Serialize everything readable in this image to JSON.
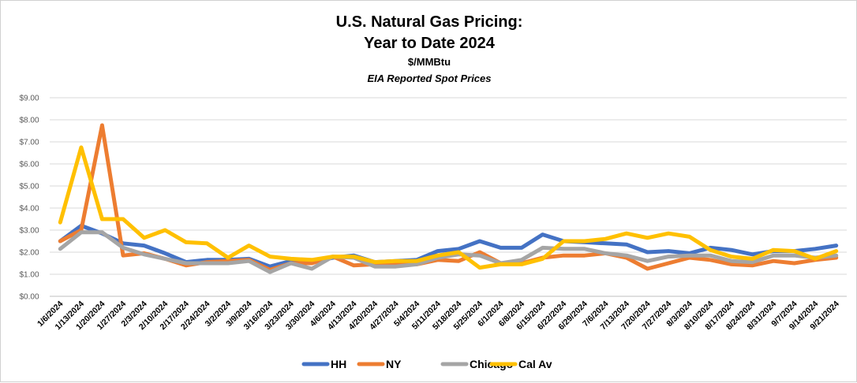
{
  "chart_data": {
    "type": "line",
    "title": "U.S. Natural Gas Pricing:",
    "subtitle": "Year to Date 2024",
    "unit_label": "$/MMBtu",
    "source_note": "EIA Reported Spot Prices",
    "xlabel": "",
    "ylabel": "",
    "ylim": [
      0,
      9
    ],
    "y_ticks": [
      "$0.00",
      "$1.00",
      "$2.00",
      "$3.00",
      "$4.00",
      "$5.00",
      "$6.00",
      "$7.00",
      "$8.00",
      "$9.00"
    ],
    "grid": true,
    "legend_position": "bottom",
    "categories": [
      "1/6/2024",
      "1/13/2024",
      "1/20/2024",
      "1/27/2024",
      "2/3/2024",
      "2/10/2024",
      "2/17/2024",
      "2/24/2024",
      "3/2/2024",
      "3/9/2024",
      "3/16/2024",
      "3/23/2024",
      "3/30/2024",
      "4/6/2024",
      "4/13/2024",
      "4/20/2024",
      "4/27/2024",
      "5/4/2024",
      "5/11/2024",
      "5/18/2024",
      "5/25/2024",
      "6/1/2024",
      "6/8/2024",
      "6/15/2024",
      "6/22/2024",
      "6/29/2024",
      "7/6/2024",
      "7/13/2024",
      "7/20/2024",
      "7/27/2024",
      "8/3/2024",
      "8/10/2024",
      "8/17/2024",
      "8/24/2024",
      "8/31/2024",
      "9/7/2024",
      "9/14/2024",
      "9/21/2024"
    ],
    "series": [
      {
        "name": "HH",
        "color": "#4472C4",
        "values": [
          2.5,
          3.2,
          2.85,
          2.4,
          2.3,
          1.95,
          1.55,
          1.65,
          1.65,
          1.7,
          1.35,
          1.6,
          1.55,
          1.75,
          1.85,
          1.55,
          1.6,
          1.65,
          2.05,
          2.15,
          2.5,
          2.2,
          2.2,
          2.8,
          2.5,
          2.45,
          2.4,
          2.35,
          2.0,
          2.05,
          1.95,
          2.2,
          2.1,
          1.9,
          2.05,
          2.05,
          2.15,
          2.3
        ]
      },
      {
        "name": "NY",
        "color": "#ED7D31",
        "values": [
          2.5,
          3.0,
          7.75,
          1.85,
          1.95,
          1.7,
          1.4,
          1.55,
          1.6,
          1.65,
          1.2,
          1.5,
          1.5,
          1.8,
          1.4,
          1.45,
          1.5,
          1.45,
          1.65,
          1.6,
          2.0,
          1.5,
          1.5,
          1.75,
          1.85,
          1.85,
          1.95,
          1.75,
          1.25,
          1.5,
          1.75,
          1.65,
          1.45,
          1.4,
          1.6,
          1.5,
          1.65,
          1.75
        ]
      },
      {
        "name": "Chicago",
        "color": "#A5A5A5",
        "values": [
          2.15,
          2.9,
          2.9,
          2.2,
          1.9,
          1.7,
          1.5,
          1.5,
          1.5,
          1.6,
          1.1,
          1.5,
          1.25,
          1.8,
          1.75,
          1.35,
          1.35,
          1.45,
          1.75,
          1.9,
          1.85,
          1.5,
          1.65,
          2.2,
          2.15,
          2.15,
          1.95,
          1.85,
          1.6,
          1.8,
          1.85,
          1.85,
          1.6,
          1.55,
          1.85,
          1.85,
          1.75,
          1.85
        ]
      },
      {
        "name": "Cal Av",
        "color": "#FFC000",
        "values": [
          3.35,
          6.75,
          3.5,
          3.5,
          2.65,
          3.0,
          2.45,
          2.4,
          1.75,
          2.3,
          1.8,
          1.7,
          1.65,
          1.8,
          1.8,
          1.55,
          1.6,
          1.6,
          1.85,
          2.0,
          1.3,
          1.45,
          1.45,
          1.7,
          2.5,
          2.5,
          2.6,
          2.85,
          2.65,
          2.85,
          2.7,
          2.1,
          1.8,
          1.7,
          2.1,
          2.05,
          1.7,
          2.05
        ]
      }
    ]
  }
}
